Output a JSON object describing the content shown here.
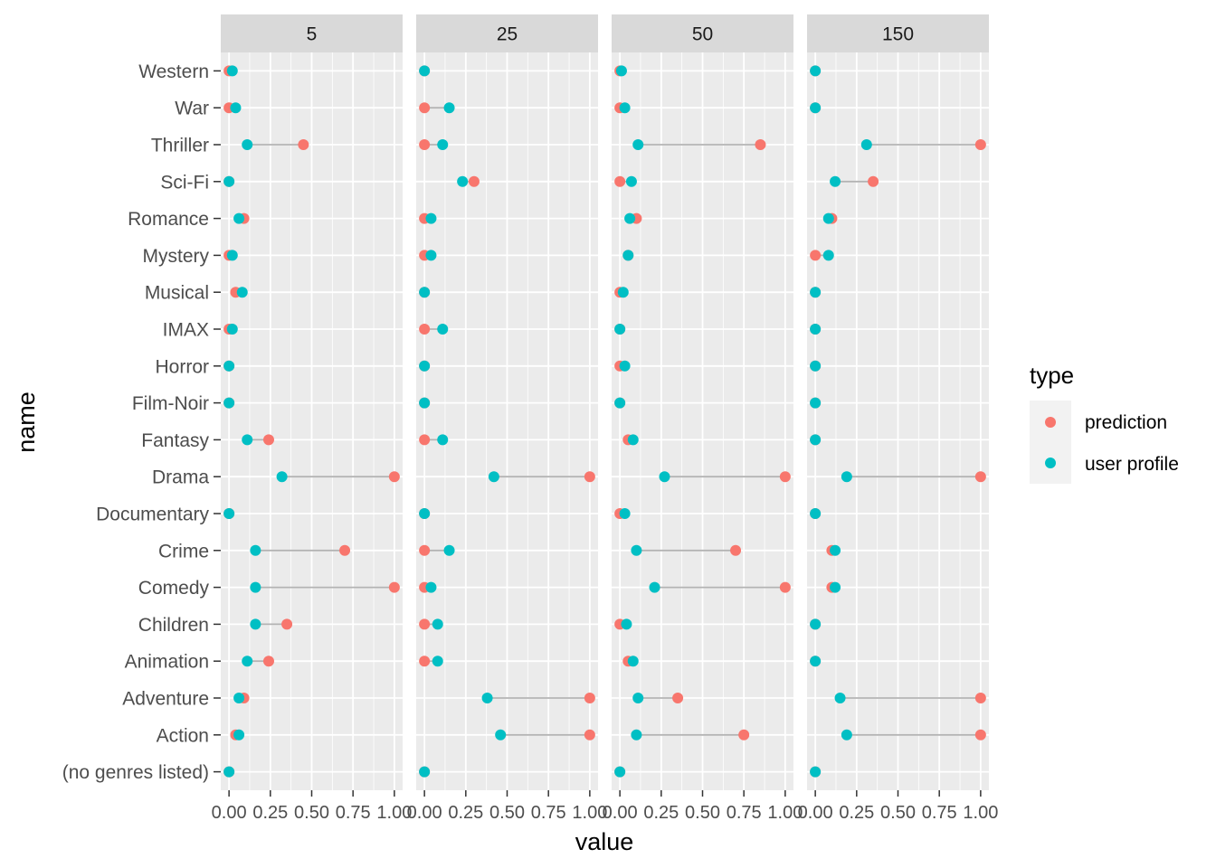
{
  "chart_data": {
    "type": "scatter",
    "xlabel": "value",
    "ylabel": "name",
    "xlim": [
      -0.05,
      1.05
    ],
    "x_ticks": [
      "0.00",
      "0.25",
      "0.50",
      "0.75",
      "1.00"
    ],
    "x_tick_values": [
      0,
      0.25,
      0.5,
      0.75,
      1.0
    ],
    "grid": true,
    "legend": {
      "title": "type",
      "placement": "right",
      "entries": [
        "prediction",
        "user profile"
      ]
    },
    "colors": {
      "prediction": "#F8766D",
      "user profile": "#00BFC4",
      "segment": "#b3b3b3",
      "panel": "#EBEBEB",
      "strip": "#D9D9D9"
    },
    "categories": [
      "Western",
      "War",
      "Thriller",
      "Sci-Fi",
      "Romance",
      "Mystery",
      "Musical",
      "IMAX",
      "Horror",
      "Film-Noir",
      "Fantasy",
      "Drama",
      "Documentary",
      "Crime",
      "Comedy",
      "Children",
      "Animation",
      "Adventure",
      "Action",
      "(no genres listed)"
    ],
    "facets": [
      {
        "label": "5",
        "prediction": [
          0.0,
          0.0,
          0.45,
          0.0,
          0.09,
          0.0,
          0.04,
          0.0,
          0.0,
          0.0,
          0.24,
          1.0,
          0.0,
          0.7,
          1.0,
          0.35,
          0.24,
          0.09,
          0.04,
          0.0
        ],
        "user_profile": [
          0.02,
          0.04,
          0.11,
          0.0,
          0.06,
          0.02,
          0.08,
          0.02,
          0.0,
          0.0,
          0.11,
          0.32,
          0.0,
          0.16,
          0.16,
          0.16,
          0.11,
          0.06,
          0.06,
          0.0
        ]
      },
      {
        "label": "25",
        "prediction": [
          0.0,
          0.0,
          0.0,
          0.3,
          0.0,
          0.0,
          0.0,
          0.0,
          0.0,
          0.0,
          0.0,
          1.0,
          0.0,
          0.0,
          0.0,
          0.0,
          0.0,
          1.0,
          1.0,
          0.0
        ],
        "user_profile": [
          0.0,
          0.15,
          0.11,
          0.23,
          0.04,
          0.04,
          0.0,
          0.11,
          0.0,
          0.0,
          0.11,
          0.42,
          0.0,
          0.15,
          0.04,
          0.08,
          0.08,
          0.38,
          0.46,
          0.0
        ]
      },
      {
        "label": "50",
        "prediction": [
          0.0,
          0.0,
          0.85,
          0.0,
          0.1,
          0.05,
          0.0,
          0.0,
          0.0,
          0.0,
          0.05,
          1.0,
          0.0,
          0.7,
          1.0,
          0.0,
          0.05,
          0.35,
          0.75,
          0.0
        ],
        "user_profile": [
          0.01,
          0.03,
          0.11,
          0.07,
          0.06,
          0.05,
          0.02,
          0.0,
          0.03,
          0.0,
          0.08,
          0.27,
          0.03,
          0.1,
          0.21,
          0.04,
          0.08,
          0.11,
          0.1,
          0.0
        ]
      },
      {
        "label": "150",
        "prediction": [
          0.0,
          0.0,
          1.0,
          0.35,
          0.1,
          0.0,
          0.0,
          0.0,
          0.0,
          0.0,
          0.0,
          1.0,
          0.0,
          0.1,
          0.1,
          0.0,
          0.0,
          1.0,
          1.0,
          0.0
        ],
        "user_profile": [
          0.0,
          0.0,
          0.31,
          0.12,
          0.08,
          0.08,
          0.0,
          0.0,
          0.0,
          0.0,
          0.0,
          0.19,
          0.0,
          0.12,
          0.12,
          0.0,
          0.0,
          0.15,
          0.19,
          0.0
        ]
      }
    ]
  }
}
